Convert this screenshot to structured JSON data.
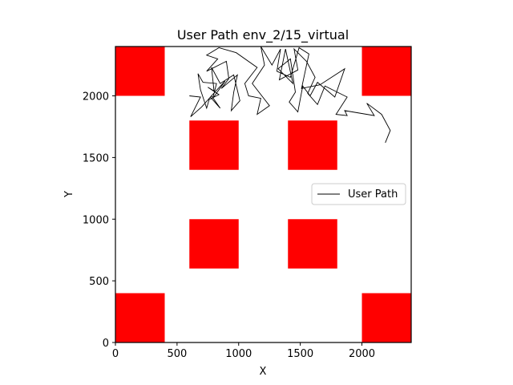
{
  "chart_data": {
    "type": "line",
    "title": "User Path env_2/15_virtual",
    "xlabel": "X",
    "ylabel": "Y",
    "xlim": [
      0,
      2400
    ],
    "ylim": [
      0,
      2400
    ],
    "xticks": [
      "0",
      "500",
      "1000",
      "1500",
      "2000"
    ],
    "yticks": [
      "0",
      "500",
      "1000",
      "1500",
      "2000"
    ],
    "grid": false,
    "legend": {
      "position": "center-right",
      "entries": [
        "User Path"
      ]
    },
    "obstacle_color": "#ff0000",
    "path_color": "#000000",
    "obstacles": [
      {
        "x": 0,
        "y": 2000,
        "w": 400,
        "h": 400
      },
      {
        "x": 2000,
        "y": 2000,
        "w": 400,
        "h": 400
      },
      {
        "x": 600,
        "y": 1400,
        "w": 400,
        "h": 400
      },
      {
        "x": 1400,
        "y": 1400,
        "w": 400,
        "h": 400
      },
      {
        "x": 600,
        "y": 600,
        "w": 400,
        "h": 400
      },
      {
        "x": 1400,
        "y": 600,
        "w": 400,
        "h": 400
      },
      {
        "x": 0,
        "y": 0,
        "w": 400,
        "h": 400
      },
      {
        "x": 2000,
        "y": 0,
        "w": 400,
        "h": 400
      }
    ],
    "series": [
      {
        "name": "User Path",
        "points": [
          [
            2190,
            1620
          ],
          [
            2230,
            1720
          ],
          [
            2160,
            1850
          ],
          [
            2040,
            1940
          ],
          [
            2100,
            1840
          ],
          [
            1980,
            1860
          ],
          [
            1860,
            1880
          ],
          [
            1880,
            1840
          ],
          [
            1790,
            1850
          ],
          [
            1880,
            1990
          ],
          [
            1700,
            2080
          ],
          [
            1640,
            1930
          ],
          [
            1560,
            2020
          ],
          [
            1620,
            2150
          ],
          [
            1550,
            2280
          ],
          [
            1450,
            2380
          ],
          [
            1480,
            2210
          ],
          [
            1330,
            2130
          ],
          [
            1380,
            2380
          ],
          [
            1440,
            2100
          ],
          [
            1320,
            2220
          ],
          [
            1420,
            2300
          ],
          [
            1460,
            2030
          ],
          [
            1410,
            1950
          ],
          [
            1480,
            1870
          ],
          [
            1520,
            2080
          ],
          [
            1580,
            2000
          ],
          [
            1640,
            2110
          ],
          [
            1780,
            1990
          ],
          [
            1860,
            2220
          ],
          [
            1660,
            2090
          ],
          [
            1510,
            2060
          ],
          [
            1570,
            2340
          ],
          [
            1490,
            2390
          ],
          [
            1420,
            2150
          ],
          [
            1310,
            2200
          ],
          [
            1340,
            2380
          ],
          [
            1270,
            2250
          ],
          [
            1180,
            2400
          ],
          [
            1210,
            2250
          ],
          [
            1110,
            2100
          ],
          [
            1250,
            1920
          ],
          [
            1150,
            1850
          ],
          [
            1180,
            1980
          ],
          [
            1080,
            2000
          ],
          [
            1050,
            2100
          ],
          [
            1150,
            2230
          ],
          [
            980,
            2350
          ],
          [
            840,
            2390
          ],
          [
            740,
            2330
          ],
          [
            830,
            2300
          ],
          [
            740,
            2200
          ],
          [
            900,
            2280
          ],
          [
            920,
            2140
          ],
          [
            860,
            2060
          ],
          [
            990,
            2170
          ],
          [
            960,
            2030
          ],
          [
            940,
            1880
          ],
          [
            1010,
            1960
          ],
          [
            960,
            2170
          ],
          [
            850,
            2100
          ],
          [
            780,
            2230
          ],
          [
            800,
            2040
          ],
          [
            750,
            2070
          ],
          [
            840,
            2010
          ],
          [
            760,
            1970
          ],
          [
            740,
            1900
          ],
          [
            690,
            2050
          ],
          [
            670,
            2180
          ],
          [
            710,
            2110
          ],
          [
            820,
            2100
          ],
          [
            790,
            1980
          ],
          [
            890,
            2120
          ],
          [
            770,
            1990
          ],
          [
            850,
            1900
          ],
          [
            780,
            2000
          ],
          [
            700,
            1910
          ],
          [
            610,
            1830
          ],
          [
            690,
            1990
          ],
          [
            600,
            2000
          ]
        ]
      }
    ]
  }
}
